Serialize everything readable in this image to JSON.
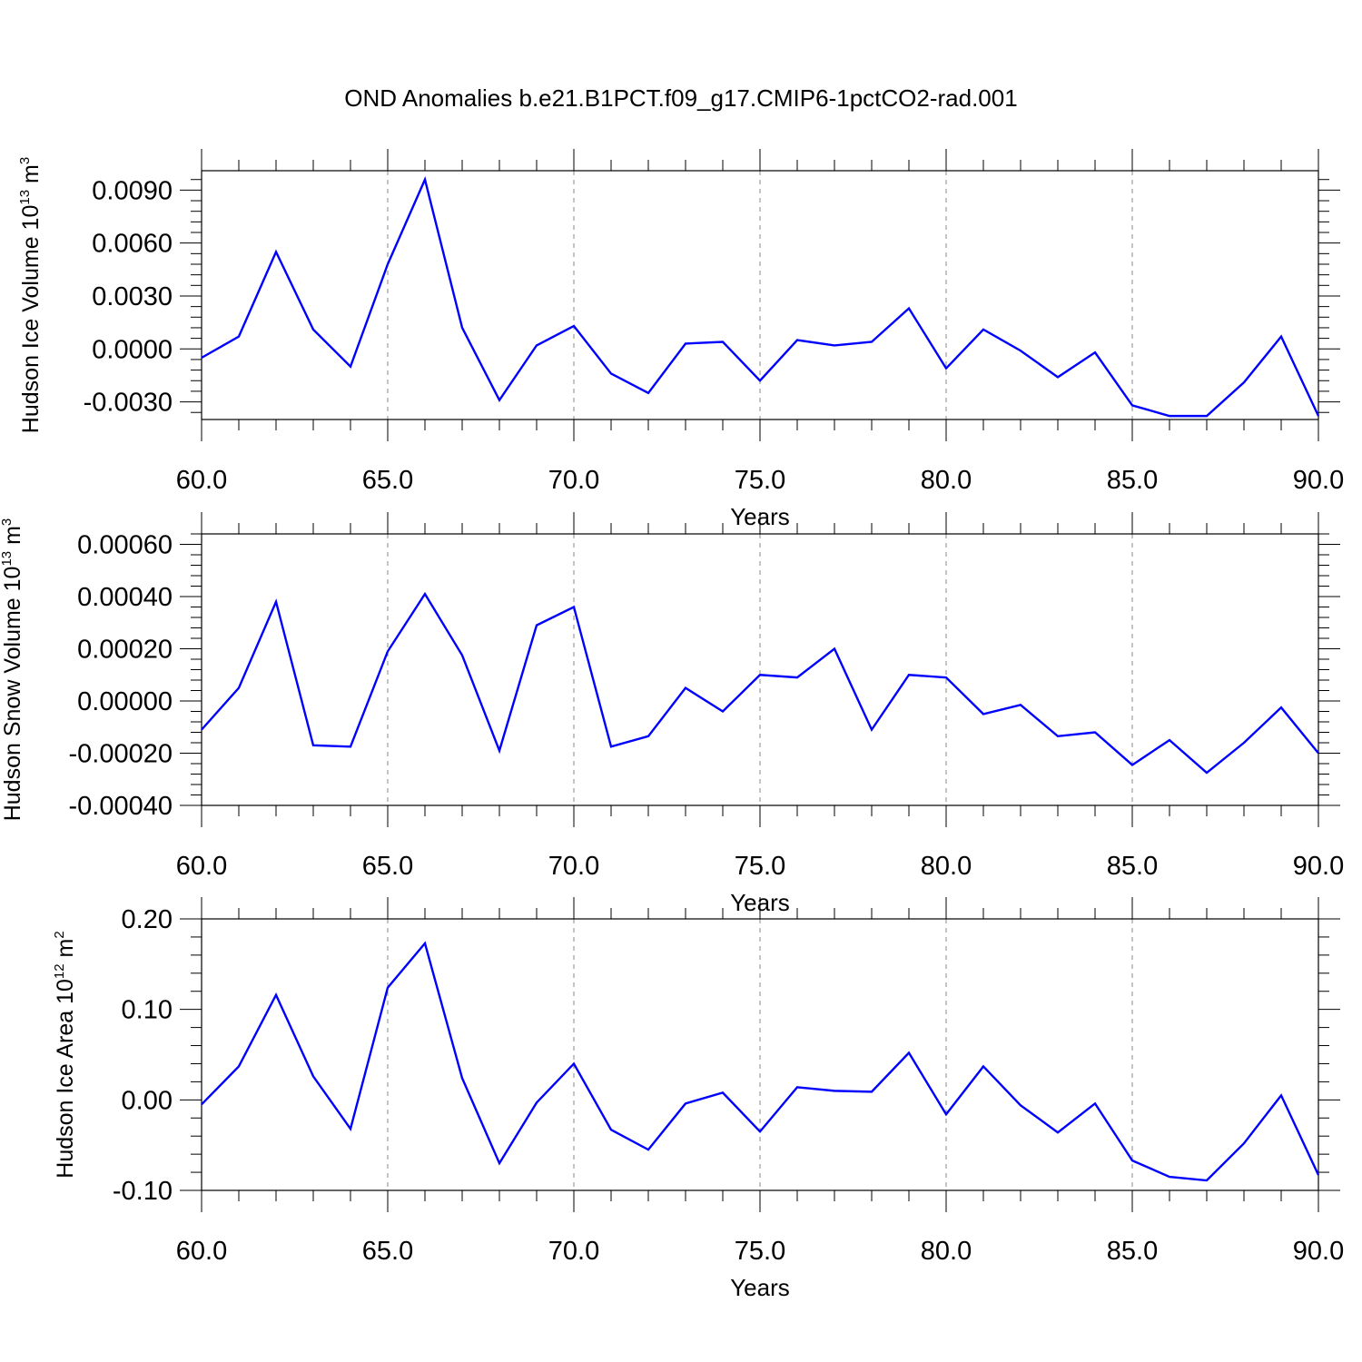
{
  "title": "OND Anomalies b.e21.B1PCT.f09_g17.CMIP6-1pctCO2-rad.001",
  "colors": {
    "line": "#0000ff",
    "frame": "#000000",
    "grid": "#888888"
  },
  "chart_data": [
    {
      "type": "line",
      "title": "OND Anomalies b.e21.B1PCT.f09_g17.CMIP6-1pctCO2-rad.001",
      "xlabel": "Years",
      "ylabel": "Hudson Ice Volume 10",
      "ylabel_sup": "13",
      "ylabel_unit": " m",
      "ylabel_unit_sup": "3",
      "xlim": [
        60,
        90
      ],
      "ylim": [
        -0.004,
        0.0101
      ],
      "xticks": [
        60,
        65,
        70,
        75,
        80,
        85,
        90
      ],
      "xtick_labels": [
        "60.0",
        "65.0",
        "70.0",
        "75.0",
        "80.0",
        "85.0",
        "90.0"
      ],
      "yticks": [
        -0.003,
        0,
        0.003,
        0.006,
        0.009
      ],
      "ytick_labels": [
        "-0.0030",
        "0.0000",
        "0.0030",
        "0.0060",
        "0.0090"
      ],
      "grid": "x-dashed",
      "x": [
        60,
        61,
        62,
        63,
        64,
        65,
        66,
        67,
        68,
        69,
        70,
        71,
        72,
        73,
        74,
        75,
        76,
        77,
        78,
        79,
        80,
        81,
        82,
        83,
        84,
        85,
        86,
        87,
        88,
        89,
        90
      ],
      "series": [
        {
          "values": [
            -0.0005,
            0.0007,
            0.0055,
            0.0011,
            -0.001,
            0.0048,
            0.0096,
            0.0012,
            -0.0029,
            0.0002,
            0.0013,
            -0.0014,
            -0.0025,
            0.0003,
            0.0004,
            -0.0018,
            0.0005,
            0.0002,
            0.0004,
            0.0023,
            -0.0011,
            0.0011,
            -0.0001,
            -0.0016,
            -0.0002,
            -0.0032,
            -0.0038,
            -0.0038,
            -0.0019,
            0.0007,
            -0.0038
          ]
        }
      ]
    },
    {
      "type": "line",
      "xlabel": "Years",
      "ylabel": "Hudson Snow Volume 10",
      "ylabel_sup": "13",
      "ylabel_unit": " m",
      "ylabel_unit_sup": "3",
      "xlim": [
        60,
        90
      ],
      "ylim": [
        -0.0004,
        0.00064
      ],
      "xticks": [
        60,
        65,
        70,
        75,
        80,
        85,
        90
      ],
      "xtick_labels": [
        "60.0",
        "65.0",
        "70.0",
        "75.0",
        "80.0",
        "85.0",
        "90.0"
      ],
      "yticks": [
        -0.0004,
        -0.0002,
        0,
        0.0002,
        0.0004,
        0.0006
      ],
      "ytick_labels": [
        "-0.00040",
        "-0.00020",
        "0.00000",
        "0.00020",
        "0.00040",
        "0.00060"
      ],
      "grid": "x-dashed",
      "x": [
        60,
        61,
        62,
        63,
        64,
        65,
        66,
        67,
        68,
        69,
        70,
        71,
        72,
        73,
        74,
        75,
        76,
        77,
        78,
        79,
        80,
        81,
        82,
        83,
        84,
        85,
        86,
        87,
        88,
        89,
        90
      ],
      "series": [
        {
          "values": [
            -0.00011,
            5e-05,
            0.00038,
            -0.00017,
            -0.000175,
            0.00019,
            0.00041,
            0.000175,
            -0.00019,
            0.00029,
            0.00036,
            -0.000175,
            -0.000135,
            5e-05,
            -4e-05,
            0.0001,
            9e-05,
            0.0002,
            -0.00011,
            0.0001,
            9e-05,
            -5e-05,
            -1.5e-05,
            -0.000135,
            -0.00012,
            -0.000245,
            -0.00015,
            -0.000275,
            -0.00016,
            -2.5e-05,
            -0.0002
          ]
        }
      ]
    },
    {
      "type": "line",
      "xlabel": "Years",
      "ylabel": "Hudson Ice Area 10",
      "ylabel_sup": "12",
      "ylabel_unit": " m",
      "ylabel_unit_sup": "2",
      "xlim": [
        60,
        90
      ],
      "ylim": [
        -0.1,
        0.2
      ],
      "xticks": [
        60,
        65,
        70,
        75,
        80,
        85,
        90
      ],
      "xtick_labels": [
        "60.0",
        "65.0",
        "70.0",
        "75.0",
        "80.0",
        "85.0",
        "90.0"
      ],
      "yticks": [
        -0.1,
        0,
        0.1,
        0.2
      ],
      "ytick_labels": [
        "-0.10",
        "0.00",
        "0.10",
        "0.20"
      ],
      "grid": "x-dashed",
      "x": [
        60,
        61,
        62,
        63,
        64,
        65,
        66,
        67,
        68,
        69,
        70,
        71,
        72,
        73,
        74,
        75,
        76,
        77,
        78,
        79,
        80,
        81,
        82,
        83,
        84,
        85,
        86,
        87,
        88,
        89,
        90
      ],
      "series": [
        {
          "values": [
            -0.005,
            0.037,
            0.116,
            0.026,
            -0.032,
            0.124,
            0.173,
            0.024,
            -0.07,
            -0.003,
            0.04,
            -0.033,
            -0.055,
            -0.004,
            0.008,
            -0.035,
            0.014,
            0.01,
            0.009,
            0.052,
            -0.016,
            0.037,
            -0.006,
            -0.036,
            -0.004,
            -0.067,
            -0.085,
            -0.089,
            -0.048,
            0.005,
            -0.083
          ]
        }
      ]
    }
  ]
}
